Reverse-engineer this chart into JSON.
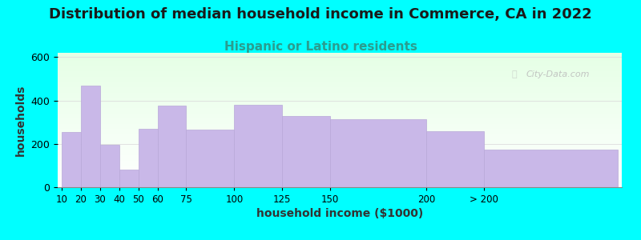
{
  "title": "Distribution of median household income in Commerce, CA in 2022",
  "subtitle": "Hispanic or Latino residents",
  "xlabel": "household income ($1000)",
  "ylabel": "households",
  "background_color": "#00FFFF",
  "bar_color": "#c9b8e8",
  "bar_edge_color": "#b8a8d8",
  "watermark": "City-Data.com",
  "title_fontsize": 13,
  "subtitle_fontsize": 11,
  "subtitle_color": "#2a9d8f",
  "axis_label_fontsize": 10,
  "ylim": [
    0,
    620
  ],
  "yticks": [
    0,
    200,
    400,
    600
  ],
  "bar_left_edges": [
    10,
    20,
    30,
    40,
    50,
    60,
    75,
    100,
    125,
    150,
    200,
    230
  ],
  "bar_widths": [
    10,
    10,
    10,
    10,
    10,
    15,
    25,
    25,
    25,
    50,
    30,
    70
  ],
  "values": [
    255,
    470,
    195,
    80,
    270,
    375,
    265,
    380,
    330,
    315,
    260,
    175
  ],
  "xtick_positions": [
    10,
    20,
    30,
    40,
    50,
    60,
    75,
    100,
    125,
    150,
    200,
    230
  ],
  "xtick_labels": [
    "10",
    "20",
    "30",
    "40",
    "50",
    "60",
    "75",
    "100",
    "125",
    "150",
    "200",
    "> 200"
  ]
}
